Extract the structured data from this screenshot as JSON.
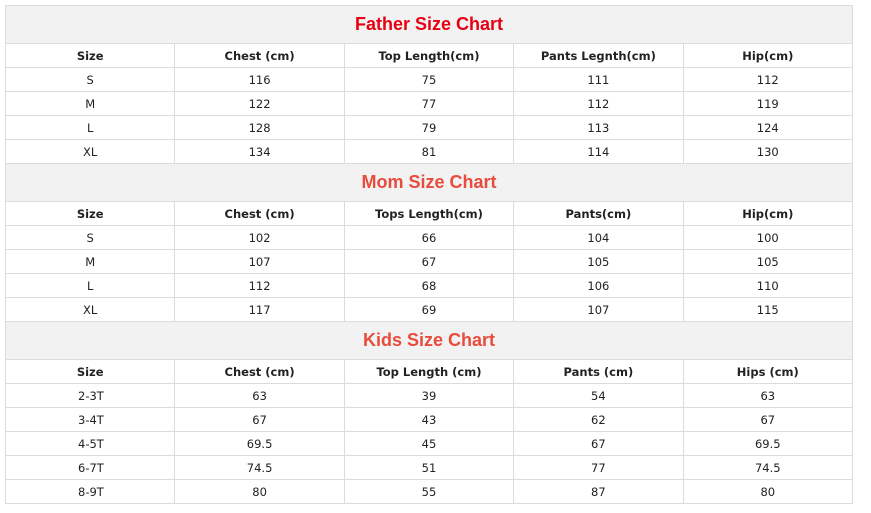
{
  "charts": [
    {
      "title": "Father Size Chart",
      "title_color": "#e60012",
      "headers": [
        "Size",
        "Chest (cm)",
        "Top Length(cm)",
        "Pants Legnth(cm)",
        "Hip(cm)"
      ],
      "rows": [
        [
          "S",
          "116",
          "75",
          "111",
          "112"
        ],
        [
          "M",
          "122",
          "77",
          "112",
          "119"
        ],
        [
          "L",
          "128",
          "79",
          "113",
          "124"
        ],
        [
          "XL",
          "134",
          "81",
          "114",
          "130"
        ]
      ]
    },
    {
      "title": "Mom Size Chart",
      "title_color": "#e84c3d",
      "headers": [
        "Size",
        "Chest (cm)",
        "Tops Length(cm)",
        "Pants(cm)",
        "Hip(cm)"
      ],
      "rows": [
        [
          "S",
          "102",
          "66",
          "104",
          "100"
        ],
        [
          "M",
          "107",
          "67",
          "105",
          "105"
        ],
        [
          "L",
          "112",
          "68",
          "106",
          "110"
        ],
        [
          "XL",
          "117",
          "69",
          "107",
          "115"
        ]
      ]
    },
    {
      "title": "Kids Size Chart",
      "title_color": "#e84c3d",
      "headers": [
        "Size",
        "Chest (cm)",
        "Top Length (cm)",
        "Pants (cm)",
        "Hips (cm)"
      ],
      "rows": [
        [
          "2-3T",
          "63",
          "39",
          "54",
          "63"
        ],
        [
          "3-4T",
          "67",
          "43",
          "62",
          "67"
        ],
        [
          "4-5T",
          "69.5",
          "45",
          "67",
          "69.5"
        ],
        [
          "6-7T",
          "74.5",
          "51",
          "77",
          "74.5"
        ],
        [
          "8-9T",
          "80",
          "55",
          "87",
          "80"
        ]
      ]
    }
  ]
}
